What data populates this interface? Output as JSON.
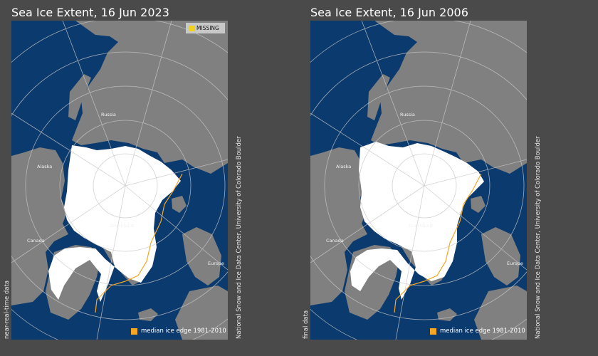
{
  "colors": {
    "background": "#4a4a4a",
    "ocean": "#0b3a6e",
    "land": "#808080",
    "ice": "#ffffff",
    "median_edge": "#f5a623",
    "missing": "#f2d21b",
    "grid": "#c8c8c8"
  },
  "panels": [
    {
      "title": "Sea Ice Extent, 16 Jun 2023",
      "status_label": "near-real-time data",
      "credit": "National Snow and Ice Data Center, University of Colorado Boulder",
      "legend_label": "median ice edge 1981-2010",
      "missing_label": "MISSING",
      "regions": {
        "russia": "Russia",
        "alaska": "Alaska",
        "canada": "Canada",
        "greenland": "Greenland",
        "europe": "Europe"
      }
    },
    {
      "title": "Sea Ice Extent, 16 Jun 2006",
      "status_label": "final data",
      "credit": "National Snow and Ice Data Center, University of Colorado Boulder",
      "legend_label": "median ice edge 1981-2010",
      "regions": {
        "russia": "Russia",
        "alaska": "Alaska",
        "canada": "Canada",
        "greenland": "Greenland",
        "europe": "Europe"
      }
    }
  ]
}
